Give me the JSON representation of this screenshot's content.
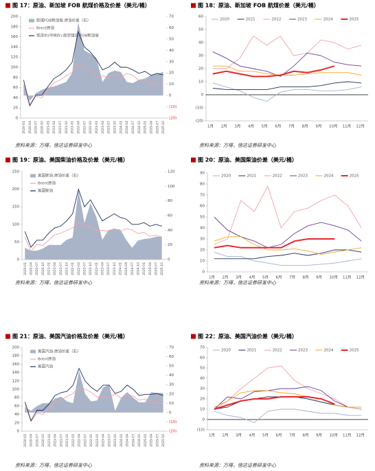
{
  "chart_data": [
    {
      "type": "combo",
      "title": "图 17：原油、新加坡 FOB 航煤价格及价差（美元/桶）",
      "source": "资料来源：万得，信达证券研发中心",
      "categories": [
        "2020-01",
        "2020-04",
        "2020-07",
        "2020-10",
        "2021-01",
        "2021-04",
        "2021-07",
        "2021-10",
        "2022-01",
        "2022-04",
        "2022-07",
        "2022-10",
        "2023-01",
        "2023-04",
        "2023-07",
        "2023-10",
        "2024-01",
        "2024-04",
        "2024-07",
        "2024-10",
        "2025-01",
        "2025-04",
        "2025-07",
        "2025-10"
      ],
      "ylim": [
        0,
        200
      ],
      "yticks": [
        0,
        20,
        40,
        60,
        80,
        100,
        120,
        140,
        160,
        180,
        200
      ],
      "y2lim": [
        -20,
        70
      ],
      "y2ticks": [
        {
          "value": -20,
          "label": "(20)"
        },
        {
          "value": -10,
          "label": "(10)"
        },
        0,
        10,
        20,
        30,
        40,
        50,
        60,
        70
      ],
      "series": [
        {
          "name": "航煤FOB新加坡-原油价差（右）",
          "color": "#a9b4c8",
          "axis": "y2",
          "values": [
            11,
            -5,
            2,
            5,
            7,
            8,
            10,
            12,
            20,
            65,
            40,
            37,
            33,
            12,
            20,
            22,
            21,
            12,
            11,
            14,
            15,
            18,
            19,
            21
          ]
        },
        {
          "name": "Brent原油",
          "color": "#f4a0a6",
          "values": [
            64,
            23,
            43,
            40,
            55,
            70,
            75,
            83,
            90,
            105,
            100,
            93,
            82,
            83,
            80,
            88,
            79,
            88,
            84,
            74,
            77,
            66,
            69,
            64
          ]
        },
        {
          "name": "现货价(中间价):航空煤油:FOB新加坡",
          "color": "#1f2d5c",
          "values": [
            75,
            25,
            45,
            45,
            62,
            78,
            85,
            95,
            110,
            170,
            140,
            130,
            115,
            95,
            100,
            110,
            100,
            100,
            95,
            88,
            92,
            84,
            88,
            85
          ]
        }
      ]
    },
    {
      "type": "line",
      "title": "图 18：原油、新加坡 FOB 航煤价差（美元/桶）",
      "source": "资料来源：万得，信达证券研发中心",
      "categories": [
        "1月",
        "2月",
        "3月",
        "4月",
        "5月",
        "6月",
        "7月",
        "8月",
        "9月",
        "10月",
        "11月",
        "12月"
      ],
      "ylim": [
        -20,
        60
      ],
      "yticks": [
        {
          "value": -20,
          "label": "(20)"
        },
        {
          "value": -10,
          "label": "(10)"
        },
        0,
        10,
        20,
        30,
        40,
        50,
        60
      ],
      "series": [
        {
          "name": "2020",
          "color": "#9fb3d1",
          "values": [
            9,
            6,
            3,
            -2,
            -5,
            2,
            4,
            4,
            3,
            3,
            4,
            6
          ]
        },
        {
          "name": "2021",
          "color": "#1f2d5c",
          "values": [
            5,
            4,
            4,
            4,
            4,
            6,
            6,
            6,
            7,
            9,
            10,
            9
          ]
        },
        {
          "name": "2022",
          "color": "#f4a0a6",
          "values": [
            20,
            20,
            28,
            45,
            38,
            45,
            30,
            32,
            42,
            40,
            35,
            38
          ]
        },
        {
          "name": "2023",
          "color": "#6a3d9a",
          "values": [
            33,
            28,
            22,
            20,
            18,
            14,
            22,
            32,
            30,
            25,
            23,
            22
          ]
        },
        {
          "name": "2024",
          "color": "#f5a623",
          "values": [
            22,
            22,
            18,
            18,
            16,
            15,
            15,
            16,
            17,
            17,
            17,
            15
          ]
        },
        {
          "name": "2025",
          "color": "#e8262b",
          "values": [
            16,
            18,
            16,
            14,
            14,
            15,
            18,
            17,
            19,
            22,
            null,
            null
          ]
        }
      ]
    },
    {
      "type": "combo",
      "title": "图 19：原油、美国柴油价格及价差（美元/桶）",
      "source": "资料来源：万得，信达证券研发中心",
      "categories": [
        "2020-01",
        "2020-04",
        "2020-07",
        "2020-10",
        "2021-01",
        "2021-04",
        "2021-07",
        "2021-10",
        "2022-01",
        "2022-04",
        "2022-07",
        "2022-10",
        "2023-01",
        "2023-04",
        "2023-07",
        "2023-10",
        "2024-01",
        "2024-04",
        "2024-07",
        "2024-10",
        "2025-01",
        "2025-04",
        "2025-07",
        "2025-10"
      ],
      "ylim": [
        0,
        250
      ],
      "yticks": [
        0,
        50,
        100,
        150,
        200,
        250
      ],
      "y2lim": [
        0,
        120
      ],
      "y2ticks": [
        0,
        20,
        40,
        60,
        80,
        100,
        120
      ],
      "series": [
        {
          "name": "美国柴油-原油价差（右）",
          "color": "#a9b4c8",
          "axis": "y2",
          "values": [
            16,
            12,
            12,
            15,
            20,
            20,
            20,
            27,
            30,
            95,
            50,
            77,
            58,
            27,
            40,
            42,
            41,
            27,
            16,
            26,
            28,
            29,
            31,
            31
          ]
        },
        {
          "name": "Brent原油",
          "color": "#f4a0a6",
          "values": [
            64,
            23,
            43,
            40,
            55,
            70,
            75,
            83,
            90,
            105,
            100,
            93,
            82,
            83,
            80,
            88,
            79,
            88,
            84,
            74,
            77,
            66,
            69,
            64
          ]
        },
        {
          "name": "美国柴油",
          "color": "#1f2d5c",
          "values": [
            80,
            35,
            55,
            55,
            75,
            90,
            95,
            110,
            130,
            200,
            150,
            170,
            140,
            110,
            120,
            130,
            120,
            115,
            100,
            100,
            105,
            95,
            100,
            95
          ]
        }
      ]
    },
    {
      "type": "line",
      "title": "图 20：原油、美国柴油价差（美元/桶）",
      "source": "资料来源：万得，信达证券研发中心",
      "categories": [
        "1月",
        "2月",
        "3月",
        "4月",
        "5月",
        "6月",
        "7月",
        "8月",
        "9月",
        "10月",
        "11月",
        "12月"
      ],
      "ylim": [
        0,
        90
      ],
      "yticks": [
        0,
        10,
        20,
        30,
        40,
        50,
        60,
        70,
        80,
        90
      ],
      "series": [
        {
          "name": "2020",
          "color": "#9fb3d1",
          "values": [
            18,
            14,
            14,
            10,
            8,
            6,
            6,
            6,
            7,
            8,
            10,
            12
          ]
        },
        {
          "name": "2021",
          "color": "#1f2d5c",
          "values": [
            12,
            12,
            12,
            12,
            14,
            15,
            17,
            15,
            17,
            20,
            20,
            18
          ]
        },
        {
          "name": "2022",
          "color": "#f4a0a6",
          "values": [
            25,
            30,
            65,
            55,
            78,
            40,
            55,
            58,
            65,
            70,
            60,
            40
          ]
        },
        {
          "name": "2023",
          "color": "#6a3d9a",
          "values": [
            50,
            38,
            32,
            28,
            22,
            25,
            35,
            42,
            45,
            42,
            38,
            28
          ]
        },
        {
          "name": "2024",
          "color": "#f5a623",
          "values": [
            28,
            32,
            32,
            25,
            20,
            20,
            21,
            19,
            16,
            18,
            20,
            22
          ]
        },
        {
          "name": "2025",
          "color": "#e8262b",
          "values": [
            22,
            24,
            22,
            22,
            22,
            22,
            28,
            30,
            30,
            30,
            null,
            null
          ]
        }
      ]
    },
    {
      "type": "combo",
      "title": "图 21：原油、美国汽油价格及价差（美元/桶）",
      "source": "资料来源：万得，信达证券研发中心",
      "categories": [
        "2020-01",
        "2020-04",
        "2020-07",
        "2020-10",
        "2021-01",
        "2021-04",
        "2021-07",
        "2021-10",
        "2022-01",
        "2022-04",
        "2022-07",
        "2022-10",
        "2023-01",
        "2023-04",
        "2023-07",
        "2023-10",
        "2024-01",
        "2024-04",
        "2024-07",
        "2024-10",
        "2025-01",
        "2025-04",
        "2025-07",
        "2025-10"
      ],
      "ylim": [
        0,
        200
      ],
      "yticks": [
        0,
        20,
        40,
        60,
        80,
        100,
        120,
        140,
        160,
        180,
        200
      ],
      "y2lim": [
        -20,
        70
      ],
      "y2ticks": [
        {
          "value": -20,
          "label": "(20)"
        },
        {
          "value": -10,
          "label": "(10)"
        },
        0,
        10,
        20,
        30,
        40,
        50,
        60,
        70
      ],
      "series": [
        {
          "name": "美国汽油-原油价差（右）",
          "color": "#a9b4c8",
          "axis": "y2",
          "values": [
            6,
            2,
            7,
            10,
            10,
            15,
            17,
            12,
            10,
            45,
            20,
            12,
            13,
            27,
            30,
            2,
            16,
            22,
            16,
            11,
            11,
            22,
            21,
            21
          ]
        },
        {
          "name": "Brent原油",
          "color": "#f4a0a6",
          "values": [
            64,
            23,
            43,
            40,
            55,
            70,
            75,
            83,
            90,
            105,
            100,
            93,
            82,
            83,
            80,
            88,
            79,
            88,
            84,
            74,
            77,
            66,
            69,
            64
          ]
        },
        {
          "name": "美国汽油",
          "color": "#1f2d5c",
          "values": [
            70,
            25,
            50,
            50,
            65,
            85,
            92,
            95,
            110,
            150,
            120,
            105,
            95,
            110,
            110,
            90,
            95,
            110,
            100,
            85,
            88,
            88,
            90,
            85
          ]
        }
      ]
    },
    {
      "type": "line",
      "title": "图 22：原油、美国汽油价差（美元/桶）",
      "source": "资料来源：万得，信达证券研发中心",
      "categories": [
        "1月",
        "2月",
        "3月",
        "4月",
        "5月",
        "6月",
        "7月",
        "8月",
        "9月",
        "10月",
        "11月",
        "12月"
      ],
      "ylim": [
        -10,
        70
      ],
      "yticks": [
        {
          "value": -10,
          "label": "(10)"
        },
        0,
        10,
        20,
        30,
        40,
        50,
        60,
        70
      ],
      "series": [
        {
          "name": "2020",
          "color": "#9fb3d1",
          "values": [
            8,
            4,
            2,
            -3,
            8,
            10,
            10,
            8,
            6,
            6,
            4,
            4
          ]
        },
        {
          "name": "2021",
          "color": "#1f2d5c",
          "values": [
            10,
            12,
            18,
            20,
            22,
            22,
            22,
            20,
            17,
            14,
            12,
            10
          ]
        },
        {
          "name": "2022",
          "color": "#f4a0a6",
          "values": [
            10,
            18,
            30,
            40,
            50,
            52,
            38,
            30,
            25,
            20,
            12,
            10
          ]
        },
        {
          "name": "2023",
          "color": "#6a3d9a",
          "values": [
            10,
            22,
            20,
            27,
            28,
            30,
            30,
            32,
            28,
            18,
            12,
            12
          ]
        },
        {
          "name": "2024",
          "color": "#f5a623",
          "values": [
            12,
            18,
            26,
            28,
            28,
            26,
            25,
            22,
            20,
            14,
            12,
            12
          ]
        },
        {
          "name": "2025",
          "color": "#e8262b",
          "values": [
            10,
            14,
            18,
            20,
            20,
            22,
            22,
            22,
            20,
            15,
            null,
            null
          ]
        }
      ]
    }
  ]
}
